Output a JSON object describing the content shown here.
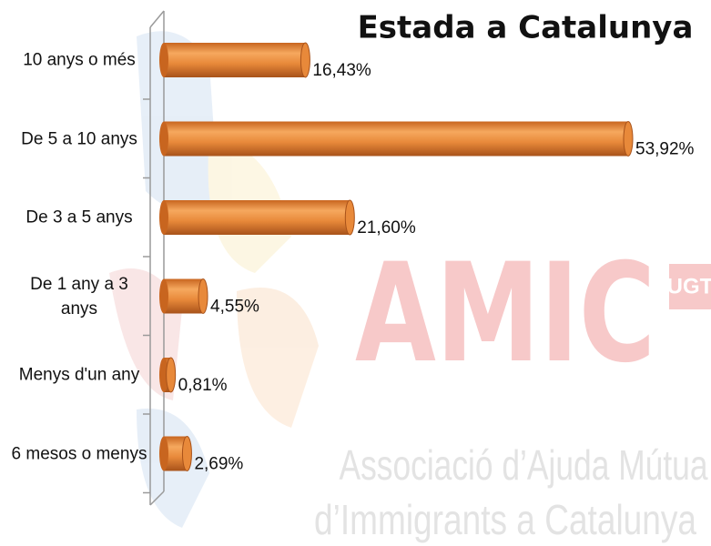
{
  "chart_data": {
    "type": "hbar",
    "title": "Estada a Catalunya",
    "categories": [
      "10 anys o més",
      "De 5 a 10 anys",
      "De 3 a 5 anys",
      "De 1 any a 3 anys",
      "Menys d'un any",
      "6 mesos o menys"
    ],
    "values": [
      16.43,
      53.92,
      21.6,
      4.55,
      0.81,
      2.69
    ],
    "value_labels": [
      "16,43%",
      "53,92%",
      "21,60%",
      "4,55%",
      "0,81%",
      "2,69%"
    ],
    "color": "#e8893a"
  },
  "watermark": {
    "logo": "AMIC",
    "badge": "UGT",
    "line1": "Associació d’Ajuda Mútua",
    "line2": "d’Immigrants a Catalunya"
  }
}
